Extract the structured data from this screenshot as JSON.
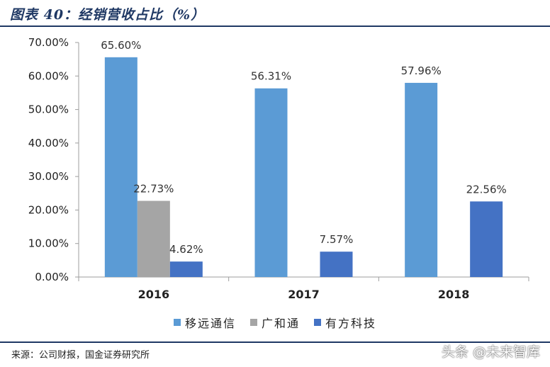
{
  "figure": {
    "title": "图表 40：经销营收占比（%）",
    "source": "来源：公司财报，国金证券研究所",
    "watermark": "头条 @未来智库"
  },
  "chart_data": {
    "type": "bar",
    "title": "",
    "xlabel": "",
    "ylabel": "",
    "categories": [
      "2016",
      "2017",
      "2018"
    ],
    "series": [
      {
        "name": "移远通信",
        "color": "#5b9bd5",
        "values": [
          65.6,
          56.31,
          57.96
        ],
        "labels": [
          "65.60%",
          "56.31%",
          "57.96%"
        ]
      },
      {
        "name": "广和通",
        "color": "#a5a5a5",
        "values": [
          22.73,
          null,
          null
        ],
        "labels": [
          "22.73%",
          "",
          ""
        ]
      },
      {
        "name": "有方科技",
        "color": "#4472c4",
        "values": [
          4.62,
          7.57,
          22.56
        ],
        "labels": [
          "4.62%",
          "7.57%",
          "22.56%"
        ]
      }
    ],
    "ylim": [
      0,
      70
    ],
    "yticks": [
      0,
      10,
      20,
      30,
      40,
      50,
      60,
      70
    ],
    "ytick_labels": [
      "0.00%",
      "10.00%",
      "20.00%",
      "30.00%",
      "40.00%",
      "50.00%",
      "60.00%",
      "70.00%"
    ],
    "grid": false,
    "legend_position": "bottom"
  }
}
